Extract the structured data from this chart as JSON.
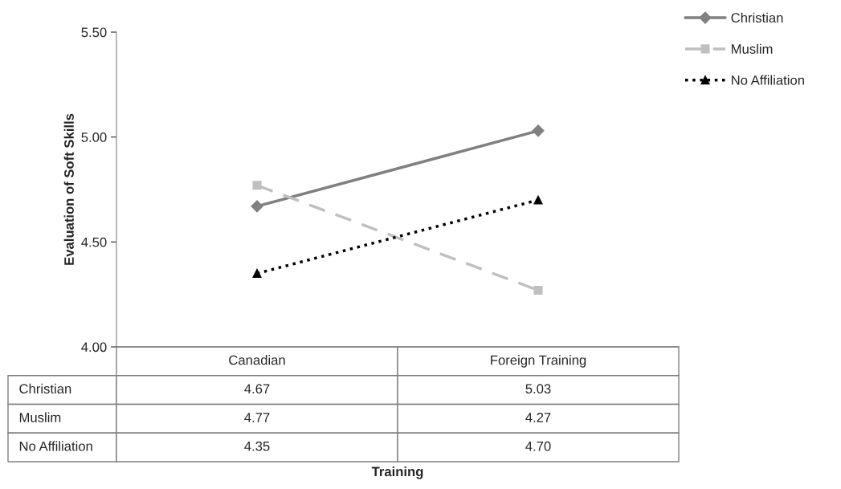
{
  "chart_data": {
    "type": "line",
    "annotations": [
      "Training"
    ],
    "ylabel": "Evaluation of Soft Skills",
    "categories": [
      "Canadian",
      "Foreign Training"
    ],
    "series": [
      {
        "name": "Christian",
        "color": "#808080",
        "values": [
          4.67,
          5.03
        ],
        "value_labels": [
          "4.67",
          "5.03"
        ],
        "marker": "diamond",
        "line_style": "solid"
      },
      {
        "name": "Muslim",
        "color": "#c0c0c0",
        "values": [
          4.77,
          4.27
        ],
        "value_labels": [
          "4.77",
          "4.27"
        ],
        "marker": "square",
        "line_style": "dashed"
      },
      {
        "name": "No Affiliation",
        "color": "#000000",
        "values": [
          4.35,
          4.7
        ],
        "value_labels": [
          "4.35",
          "4.70"
        ],
        "marker": "triangle",
        "line_style": "dotted"
      }
    ],
    "ylim": [
      4.0,
      5.5
    ],
    "yticks": [
      {
        "value": 4.0,
        "label": "4.00"
      },
      {
        "value": 4.5,
        "label": "4.50"
      },
      {
        "value": 5.0,
        "label": "5.00"
      },
      {
        "value": 5.5,
        "label": "5.50"
      }
    ],
    "grid": false,
    "legend": "top right"
  }
}
